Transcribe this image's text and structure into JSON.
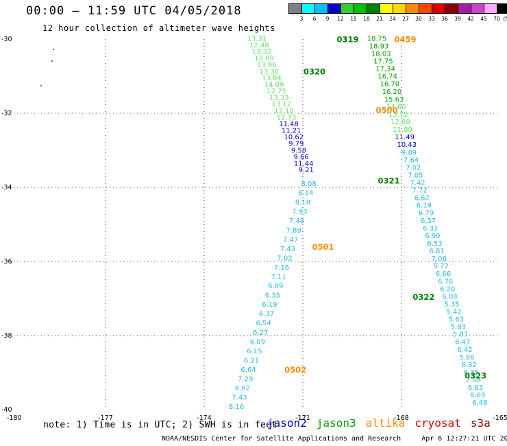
{
  "header": {
    "title": "00:00 – 11:59 UTC 04/05/2018",
    "subtitle": "12 hour collection of altimeter wave heights"
  },
  "legend": {
    "unit": "(ft)",
    "bins": [
      {
        "label": "3",
        "color": "#808080"
      },
      {
        "label": "6",
        "color": "#00ffff"
      },
      {
        "label": "9",
        "color": "#00bfff"
      },
      {
        "label": "12",
        "color": "#0000cd"
      },
      {
        "label": "15",
        "color": "#32cd32"
      },
      {
        "label": "18",
        "color": "#00c000"
      },
      {
        "label": "21",
        "color": "#008000"
      },
      {
        "label": "24",
        "color": "#ffff00"
      },
      {
        "label": "27",
        "color": "#ffd700"
      },
      {
        "label": "30",
        "color": "#ff8c00"
      },
      {
        "label": "33",
        "color": "#ff4500"
      },
      {
        "label": "36",
        "color": "#dd0000"
      },
      {
        "label": "39",
        "color": "#8b0000"
      },
      {
        "label": "42",
        "color": "#a020a0"
      },
      {
        "label": "45",
        "color": "#cc44cc"
      },
      {
        "label": "70",
        "color": "#ffaaff"
      },
      {
        "label": "",
        "color": "#000000"
      }
    ]
  },
  "map": {
    "lon_range": [
      -180,
      -165
    ],
    "lat_range": [
      -40,
      -30
    ],
    "lon_ticks": [
      "-180",
      "-177",
      "-174",
      "-171",
      "-168",
      "-165"
    ],
    "lat_ticks": [
      "-30",
      "-32",
      "-34",
      "-36",
      "-38",
      "-40"
    ],
    "grid": true
  },
  "colors": {
    "light_green": "#5fdc5f",
    "green": "#00a000",
    "dark_green": "#008000",
    "blue": "#0000cd",
    "cyan": "#22b8e0",
    "orange": "#ff8c00"
  },
  "track_labels": [
    {
      "text": "0319",
      "lon": -169.97,
      "lat": -30.01,
      "color": "dark_green"
    },
    {
      "text": "0320",
      "lon": -170.98,
      "lat": -30.88,
      "color": "dark_green"
    },
    {
      "text": "0321",
      "lon": -168.72,
      "lat": -33.82,
      "color": "dark_green"
    },
    {
      "text": "0322",
      "lon": -167.66,
      "lat": -36.96,
      "color": "dark_green"
    },
    {
      "text": "0323",
      "lon": -166.08,
      "lat": -39.08,
      "color": "dark_green"
    },
    {
      "text": "0459",
      "lon": -168.22,
      "lat": -30.01,
      "color": "orange"
    },
    {
      "text": "0500",
      "lon": -168.78,
      "lat": -31.92,
      "color": "orange"
    },
    {
      "text": "0501",
      "lon": -170.72,
      "lat": -35.61,
      "color": "orange"
    },
    {
      "text": "0502",
      "lon": -171.56,
      "lat": -38.93,
      "color": "orange"
    }
  ],
  "tracks": [
    {
      "name": "ascending",
      "start": [
        -171.62,
        -30.01
      ],
      "end": [
        -169.28,
        -32.45
      ],
      "colors": [
        "light_green",
        "light_green",
        "light_green",
        "light_green",
        "light_green",
        "light_green",
        "light_green",
        "light_green",
        "light_green",
        "light_green",
        "light_green",
        "light_green",
        "light_green",
        "blue",
        "blue",
        "blue",
        "blue",
        "blue"
      ],
      "values": [
        "13.31",
        "12.48",
        "13.32",
        "12.89",
        "13.96",
        "13.30",
        "13.84",
        "14.09",
        "12.75",
        "13.33",
        "13.12",
        "12.10",
        "12.73",
        "11.48",
        "11.21",
        "10.62",
        "9.79",
        "9.58"
      ],
      "note": "these values form the NW->SE diagonal track"
    }
  ],
  "labels": {
    "t1": [
      "13.31",
      "12.48",
      "13.32",
      "12.89",
      "13.96",
      "13.30",
      "13.84",
      "14.09",
      "12.75",
      "13.33",
      "13.12",
      "12.10",
      "12.73",
      "11.48",
      "11.21",
      "10.62",
      "9.79",
      "9.58",
      "9.66",
      "11.44",
      "9.21"
    ],
    "t1_colors": [
      "light_green",
      "light_green",
      "light_green",
      "light_green",
      "light_green",
      "light_green",
      "light_green",
      "light_green",
      "light_green",
      "light_green",
      "light_green",
      "light_green",
      "light_green",
      "blue",
      "blue",
      "blue",
      "blue",
      "blue",
      "blue",
      "blue",
      "blue"
    ],
    "t2": [
      "18.75",
      "18.93",
      "18.03",
      "17.75",
      "17.34",
      "16.74",
      "16.70",
      "16.20",
      "15.63",
      "14.60",
      "13.72",
      "12.89",
      "11.80",
      "11.49",
      "10.43",
      "9.89",
      "7.64",
      "7.02",
      "7.05",
      "7.42",
      "7.72",
      "6.62",
      "6.19",
      "6.79",
      "6.57",
      "6.32",
      "6.90",
      "6.53",
      "6.81",
      "7.06",
      "5.72",
      "6.66",
      "6.76",
      "6.20",
      "6.08",
      "5.35",
      "5.42",
      "5.63",
      "5.83",
      "5.87",
      "6.47",
      "6.42",
      "5.86",
      "6.82",
      "6.35",
      "7.58",
      "6.83",
      "6.69",
      "6.48"
    ],
    "t2_colors": [
      "green",
      "green",
      "green",
      "green",
      "green",
      "green",
      "green",
      "green",
      "green",
      "light_green",
      "light_green",
      "light_green",
      "light_green",
      "blue",
      "blue",
      "cyan",
      "cyan",
      "cyan",
      "cyan",
      "cyan",
      "cyan",
      "cyan",
      "cyan",
      "cyan",
      "cyan",
      "cyan",
      "cyan",
      "cyan",
      "cyan",
      "cyan",
      "cyan",
      "cyan",
      "cyan",
      "cyan",
      "cyan",
      "cyan",
      "cyan",
      "cyan",
      "cyan",
      "cyan",
      "cyan",
      "cyan",
      "cyan",
      "cyan",
      "cyan",
      "cyan",
      "cyan",
      "cyan",
      "cyan"
    ],
    "t3": [
      "8.08",
      "8.14",
      "8.18",
      "7.93",
      "7.48",
      "7.89",
      "7.47",
      "7.43",
      "7.02",
      "7.16",
      "7.11",
      "6.89",
      "6.35",
      "6.19",
      "6.37",
      "6.54",
      "6.27",
      "6.09",
      "6.15",
      "6.21",
      "6.64",
      "7.29",
      "6.62",
      "7.43",
      "8.16"
    ],
    "t3_colors": [
      "cyan",
      "cyan",
      "cyan",
      "cyan",
      "cyan",
      "cyan",
      "cyan",
      "cyan",
      "cyan",
      "cyan",
      "cyan",
      "cyan",
      "cyan",
      "cyan",
      "cyan",
      "cyan",
      "cyan",
      "cyan",
      "cyan",
      "cyan",
      "cyan",
      "cyan",
      "cyan",
      "cyan",
      "cyan"
    ]
  },
  "note": "note: 1) Time is in UTC; 2) SWH is in feet",
  "satellites": [
    {
      "name": "jason2",
      "color": "#0000cd"
    },
    {
      "name": "jason3",
      "color": "#00a000"
    },
    {
      "name": "altika",
      "color": "#ff8c00"
    },
    {
      "name": "cryosat",
      "color": "#dd0000"
    },
    {
      "name": "s3a",
      "color": "#8b0000"
    }
  ],
  "credit": "NOAA/NESDIS Center for Satellite Applications and Research",
  "generated": "Apr  6 12:27:21 UTC 2018"
}
